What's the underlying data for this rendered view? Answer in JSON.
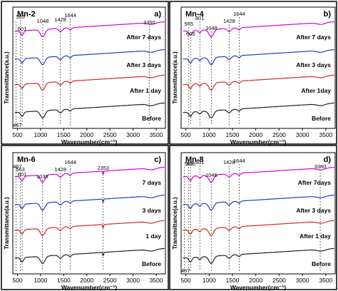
{
  "chart_data": [
    {
      "type": "line",
      "sample": "Mn-2",
      "panel_label": "a)",
      "xlabel": "Wavenumber(cm⁻¹)",
      "ylabel": "Transmittance(a.u.)",
      "xlim": [
        400,
        3700
      ],
      "xticks": [
        500,
        1000,
        1500,
        2000,
        2500,
        3000,
        3500
      ],
      "y_ticks_shown": false,
      "grid": false,
      "peaks": [
        {
          "label": "565",
          "x": 565
        },
        {
          "label": "601",
          "x": 601
        },
        {
          "label": "1048",
          "x": 1048
        },
        {
          "label": "1428",
          "x": 1428
        },
        {
          "label": "1644",
          "x": 1644
        },
        {
          "label": "3350",
          "x": 3350
        },
        {
          "label": "467",
          "x": 467
        }
      ],
      "series": [
        {
          "name": "After 7 days",
          "color": "#d400d4",
          "level": 0.8
        },
        {
          "name": "After 3 days",
          "color": "#1f3fbf",
          "level": 0.57
        },
        {
          "name": "After 1 day",
          "color": "#d42a1e",
          "level": 0.36
        },
        {
          "name": "Before",
          "color": "#222222",
          "level": 0.13
        }
      ]
    },
    {
      "type": "line",
      "sample": "Mn-4",
      "panel_label": "b)",
      "xlabel": "Wavenumber(cm⁻¹)",
      "ylabel": "Transmittance(a.u.)",
      "xlim": [
        400,
        3700
      ],
      "xticks": [
        500,
        1000,
        1500,
        2000,
        2500,
        3000,
        3500
      ],
      "y_ticks_shown": false,
      "grid": false,
      "peaks": [
        {
          "label": "565",
          "x": 565
        },
        {
          "label": "605",
          "x": 605
        },
        {
          "label": "801",
          "x": 801
        },
        {
          "label": "1048",
          "x": 1048
        },
        {
          "label": "1428",
          "x": 1428
        },
        {
          "label": "1644",
          "x": 1644
        }
      ],
      "series": [
        {
          "name": "After 7 days",
          "color": "#d400d4",
          "level": 0.8
        },
        {
          "name": "After 3 days",
          "color": "#1f3fbf",
          "level": 0.57
        },
        {
          "name": "After 1day",
          "color": "#d42a1e",
          "level": 0.36
        },
        {
          "name": "Before",
          "color": "#222222",
          "level": 0.13
        }
      ]
    },
    {
      "type": "line",
      "sample": "Mn-6",
      "panel_label": "c)",
      "xlabel": "Wavenumber(cm⁻¹)",
      "ylabel": "Transmittance(a.u.)",
      "xlim": [
        400,
        3700
      ],
      "xticks": [
        500,
        1000,
        1500,
        2000,
        2500,
        3000,
        3500
      ],
      "y_ticks_shown": false,
      "grid": false,
      "peaks": [
        {
          "label": "467",
          "x": 467
        },
        {
          "label": "563",
          "x": 563
        },
        {
          "label": "601",
          "x": 601
        },
        {
          "label": "1038",
          "x": 1038
        },
        {
          "label": "1428",
          "x": 1428
        },
        {
          "label": "1644",
          "x": 1644
        },
        {
          "label": "2353",
          "x": 2353
        }
      ],
      "series": [
        {
          "name": "7 days",
          "color": "#d400d4",
          "level": 0.8
        },
        {
          "name": "3 days",
          "color": "#1f3fbf",
          "level": 0.57
        },
        {
          "name": "1 day",
          "color": "#d42a1e",
          "level": 0.36
        },
        {
          "name": "Before",
          "color": "#222222",
          "level": 0.13
        }
      ]
    },
    {
      "type": "line",
      "sample": "Mn-8",
      "panel_label": "d)",
      "xlabel": "Wavenumber(cm⁻¹)",
      "ylabel": "Transmittance(a.u.)",
      "xlim": [
        400,
        3700
      ],
      "xticks": [
        500,
        1000,
        1500,
        2000,
        2500,
        3000,
        3500
      ],
      "y_ticks_shown": false,
      "grid": false,
      "peaks": [
        {
          "label": "565",
          "x": 565
        },
        {
          "label": "606",
          "x": 606
        },
        {
          "label": "801",
          "x": 801
        },
        {
          "label": "1046",
          "x": 1046
        },
        {
          "label": "1428",
          "x": 1428
        },
        {
          "label": "1644",
          "x": 1644
        },
        {
          "label": "3380",
          "x": 3380
        },
        {
          "label": "467",
          "x": 467
        }
      ],
      "series": [
        {
          "name": "After 7days",
          "color": "#d400d4",
          "level": 0.8
        },
        {
          "name": "After 3 days",
          "color": "#1f3fbf",
          "level": 0.57
        },
        {
          "name": "After 1 day",
          "color": "#d42a1e",
          "level": 0.36
        },
        {
          "name": "Before",
          "color": "#222222",
          "level": 0.13
        }
      ]
    }
  ]
}
